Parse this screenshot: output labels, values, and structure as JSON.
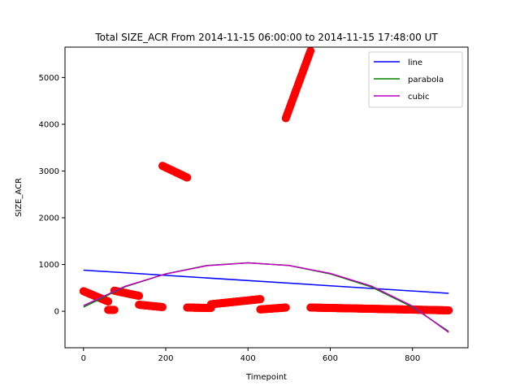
{
  "chart_data": {
    "type": "scatter",
    "title": "Total SIZE_ACR From 2014-11-15 06:00:00 to 2014-11-15 17:48:00 UT",
    "xlabel": "Timepoint",
    "ylabel": "SIZE_ACR",
    "xlim": [
      -45,
      935
    ],
    "ylim": [
      -780,
      5650
    ],
    "xticks": [
      0,
      200,
      400,
      600,
      800
    ],
    "yticks": [
      0,
      1000,
      2000,
      3000,
      4000,
      5000
    ],
    "grid": false,
    "legend_position": "top-right",
    "scatter": {
      "color": "#ff0000",
      "segments": [
        {
          "x0": 0,
          "x1": 60,
          "y0": 430,
          "y1": 210
        },
        {
          "x0": 60,
          "x1": 75,
          "y0": 30,
          "y1": 30
        },
        {
          "x0": 75,
          "x1": 135,
          "y0": 440,
          "y1": 330
        },
        {
          "x0": 135,
          "x1": 192,
          "y0": 140,
          "y1": 90
        },
        {
          "x0": 192,
          "x1": 252,
          "y0": 3110,
          "y1": 2860
        },
        {
          "x0": 252,
          "x1": 310,
          "y0": 80,
          "y1": 70
        },
        {
          "x0": 310,
          "x1": 430,
          "y0": 150,
          "y1": 260
        },
        {
          "x0": 430,
          "x1": 492,
          "y0": 40,
          "y1": 80
        },
        {
          "x0": 492,
          "x1": 552,
          "y0": 4130,
          "y1": 5570
        },
        {
          "x0": 552,
          "x1": 888,
          "y0": 80,
          "y1": 20
        }
      ]
    },
    "series": [
      {
        "name": "line",
        "color": "#0000ff",
        "x": [
          0,
          888
        ],
        "y": [
          880,
          385
        ]
      },
      {
        "name": "parabola",
        "color": "#008000",
        "x": [
          0,
          100,
          200,
          300,
          400,
          500,
          600,
          700,
          800,
          888
        ],
        "y": [
          90,
          520,
          800,
          980,
          1035,
          980,
          800,
          520,
          90,
          -430
        ]
      },
      {
        "name": "cubic",
        "color": "#bf00bf",
        "x": [
          0,
          100,
          200,
          300,
          400,
          500,
          600,
          700,
          800,
          888
        ],
        "y": [
          120,
          530,
          800,
          975,
          1035,
          980,
          810,
          540,
          110,
          -450
        ]
      }
    ]
  }
}
